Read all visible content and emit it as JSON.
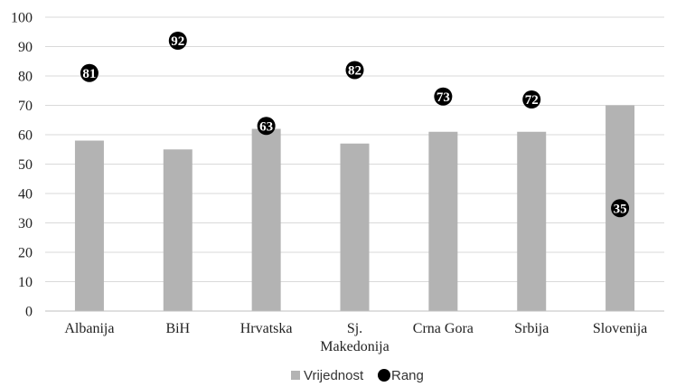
{
  "chart_data": {
    "type": "bar",
    "categories": [
      "Albanija",
      "BiH",
      "Hrvatska",
      "Sj. Makedonija",
      "Crna Gora",
      "Srbija",
      "Slovenija"
    ],
    "category_lines": [
      [
        "Albanija"
      ],
      [
        "BiH"
      ],
      [
        "Hrvatska"
      ],
      [
        "Sj.",
        "Makedonija"
      ],
      [
        "Crna Gora"
      ],
      [
        "Srbija"
      ],
      [
        "Slovenija"
      ]
    ],
    "series": [
      {
        "name": "Vrijednost",
        "type": "bar",
        "values": [
          58,
          55,
          62,
          57,
          61,
          61,
          70
        ],
        "color": "#b3b3b3"
      },
      {
        "name": "Rang",
        "type": "scatter",
        "values": [
          81,
          92,
          63,
          82,
          73,
          72,
          35
        ],
        "color": "#000000"
      }
    ],
    "ylim": [
      0,
      100
    ],
    "yticks": [
      0,
      10,
      20,
      30,
      40,
      50,
      60,
      70,
      80,
      90,
      100
    ],
    "grid": true,
    "legend": "bottom-center",
    "title": "",
    "xlabel": "",
    "ylabel": ""
  }
}
